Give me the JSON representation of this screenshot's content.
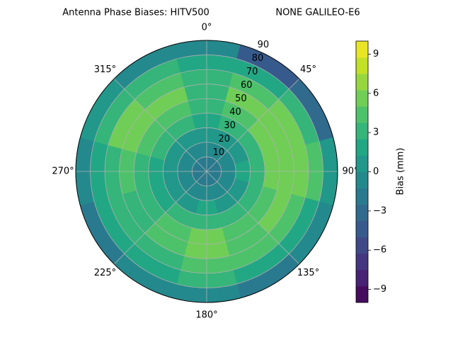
{
  "chart_data": {
    "type": "polar-contour",
    "title": "Antenna Phase Biases: HITV500",
    "subtitle": "NONE GALILEO-E6",
    "colormap": "viridis",
    "colorbar_label": "Bias (mm)",
    "levels": [
      -10,
      -8.75,
      -7.5,
      -6.25,
      -5,
      -3.75,
      -2.5,
      -1.25,
      0,
      1.25,
      2.5,
      3.75,
      5,
      6.25,
      7.5,
      8.75,
      10
    ],
    "cticks": [
      {
        "value": -9,
        "label": "−9"
      },
      {
        "value": -6,
        "label": "−6"
      },
      {
        "value": -3,
        "label": "−3"
      },
      0,
      3,
      6,
      9
    ],
    "rlim": [
      0,
      90
    ],
    "rticks": [
      10,
      20,
      30,
      40,
      50,
      60,
      70,
      80,
      90
    ],
    "thetaticks": [
      {
        "value": 0,
        "label": "0°"
      },
      {
        "value": 45,
        "label": "45°"
      },
      {
        "value": 90,
        "label": "90°"
      },
      {
        "value": 135,
        "label": "135°"
      },
      {
        "value": 180,
        "label": "180°"
      },
      {
        "value": 225,
        "label": "225°"
      },
      {
        "value": 270,
        "label": "270°"
      },
      {
        "value": 315,
        "label": "315°"
      }
    ],
    "r_bins": [
      0,
      10,
      20,
      30,
      40,
      50,
      60,
      70,
      80,
      90
    ],
    "theta_bins": [
      -15,
      15,
      45,
      75,
      105,
      135,
      165,
      195,
      225,
      255,
      285,
      315,
      345
    ],
    "values": [
      [
        -1.5,
        -1.5,
        -1.5,
        -1.5,
        -1.5,
        -1.5,
        -1.5,
        -1.5,
        -1.5,
        -1.5,
        -1.5,
        -1.5
      ],
      [
        -1,
        -1,
        -0.5,
        -0.5,
        -1,
        -1,
        -1,
        -1,
        -1,
        -0.5,
        -1,
        -1
      ],
      [
        0.5,
        1,
        1,
        1.5,
        1,
        1,
        1.5,
        1,
        0.5,
        0.5,
        1,
        1
      ],
      [
        2,
        3,
        3.5,
        3.5,
        3,
        3,
        3.5,
        2.5,
        2,
        2,
        3,
        3
      ],
      [
        3,
        4.5,
        5,
        5,
        4.5,
        4,
        5,
        4,
        3,
        3.5,
        4.5,
        4.5
      ],
      [
        3.5,
        5,
        5.5,
        6,
        5,
        4.5,
        5.5,
        4.5,
        3.5,
        4,
        5.5,
        5.5
      ],
      [
        3,
        4.5,
        5,
        5.5,
        4,
        4,
        4.5,
        3.5,
        3,
        3.5,
        5,
        4.5
      ],
      [
        1.5,
        1.5,
        3,
        4,
        2,
        2,
        2.5,
        1.5,
        1.5,
        2,
        3,
        2.5
      ],
      [
        -1,
        -5,
        -3,
        1,
        -1,
        -2,
        -1,
        -1,
        -2,
        -1,
        0,
        -1
      ]
    ],
    "grid": true
  }
}
